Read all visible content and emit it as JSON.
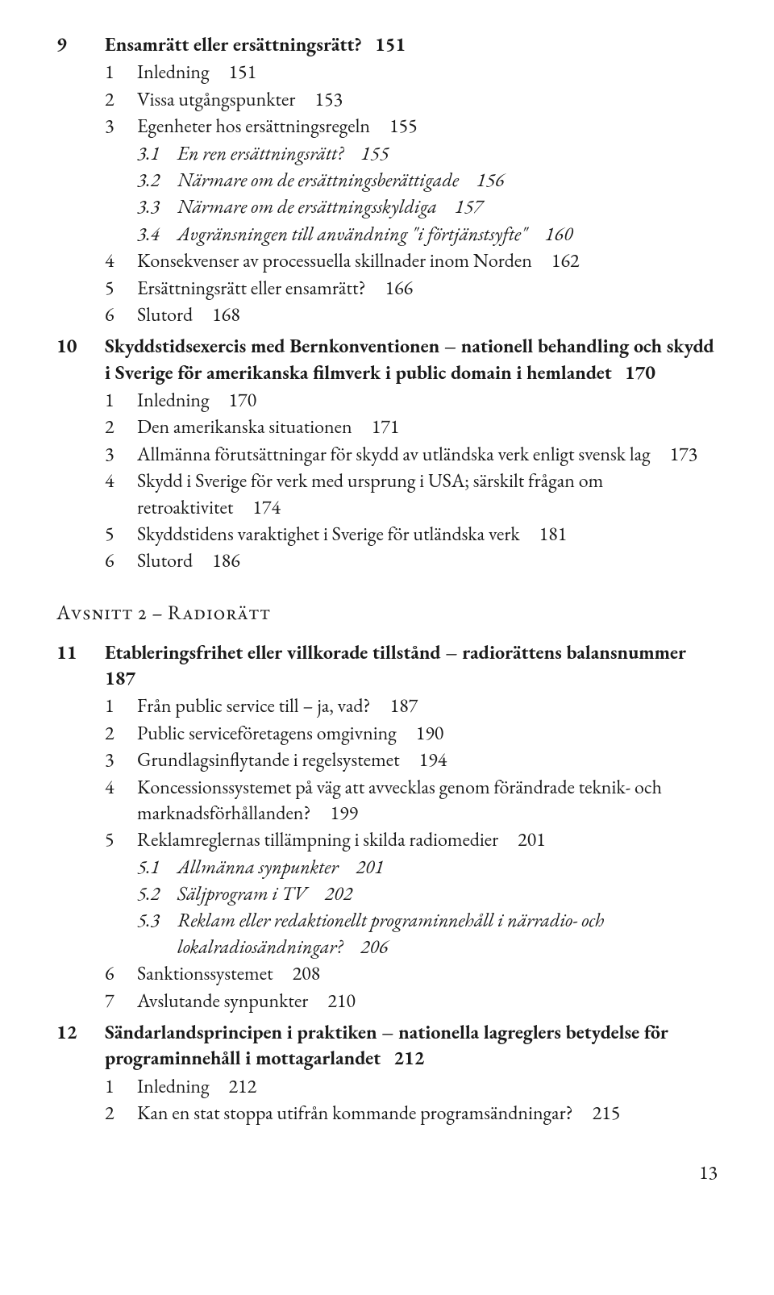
{
  "chapters": [
    {
      "num": "9",
      "title": "Ensamrätt eller ersättningsrätt?",
      "page": "151",
      "subs": [
        {
          "num": "1",
          "text": "Inledning",
          "page": "151"
        },
        {
          "num": "2",
          "text": "Vissa utgångspunkter",
          "page": "153"
        },
        {
          "num": "3",
          "text": "Egenheter hos ersättningsregeln",
          "page": "155",
          "subsubs": [
            {
              "num": "3.1",
              "text": "En ren ersättningsrätt?",
              "page": "155",
              "italic": true
            },
            {
              "num": "3.2",
              "text": "Närmare om de ersättningsberättigade",
              "page": "156",
              "italic": true
            },
            {
              "num": "3.3",
              "text": "Närmare om de ersättningsskyldiga",
              "page": "157",
              "italic": true
            },
            {
              "num": "3.4",
              "text": "Avgränsningen till användning \"i förtjänstsyfte\"",
              "page": "160",
              "italic": true
            }
          ]
        },
        {
          "num": "4",
          "text": "Konsekvenser av processuella skillnader inom Norden",
          "page": "162"
        },
        {
          "num": "5",
          "text": "Ersättningsrätt eller ensamrätt?",
          "page": "166"
        },
        {
          "num": "6",
          "text": "Slutord",
          "page": "168"
        }
      ]
    },
    {
      "num": "10",
      "title": "Skyddstidsexercis med Bernkonventionen – nationell behandling och skydd i Sverige för amerikanska filmverk i public domain i hemlandet",
      "page": "170",
      "subs": [
        {
          "num": "1",
          "text": "Inledning",
          "page": "170"
        },
        {
          "num": "2",
          "text": "Den amerikanska situationen",
          "page": "171"
        },
        {
          "num": "3",
          "text": "Allmänna förutsättningar för skydd av utländska verk enligt svensk lag",
          "page": "173"
        },
        {
          "num": "4",
          "text": "Skydd i Sverige för verk med ursprung i USA; särskilt frågan om retroaktivitet",
          "page": "174"
        },
        {
          "num": "5",
          "text": "Skyddstidens varaktighet i Sverige för utländska verk",
          "page": "181"
        },
        {
          "num": "6",
          "text": "Slutord",
          "page": "186"
        }
      ]
    }
  ],
  "sectionHead": "Avsnitt 2 – Radiorätt",
  "chapters2": [
    {
      "num": "11",
      "title": "Etableringsfrihet eller villkorade tillstånd – radiorättens balansnummer",
      "page": "187",
      "subs": [
        {
          "num": "1",
          "text": "Från public service till – ja, vad?",
          "page": "187"
        },
        {
          "num": "2",
          "text": "Public serviceföretagens omgivning",
          "page": "190"
        },
        {
          "num": "3",
          "text": "Grundlagsinflytande i regelsystemet",
          "page": "194"
        },
        {
          "num": "4",
          "text": "Koncessionssystemet på väg att avvecklas genom förändrade teknik- och marknadsförhållanden?",
          "page": "199"
        },
        {
          "num": "5",
          "text": "Reklamreglernas tillämpning i skilda radiomedier",
          "page": "201",
          "subsubs": [
            {
              "num": "5.1",
              "text": "Allmänna synpunkter",
              "page": "201",
              "italic": true
            },
            {
              "num": "5.2",
              "text": "Säljprogram i TV",
              "page": "202",
              "italic": true
            },
            {
              "num": "5.3",
              "text": "Reklam eller redaktionellt programinnehåll i närradio- och lokalradiosändningar?",
              "page": "206",
              "italic": true
            }
          ]
        },
        {
          "num": "6",
          "text": "Sanktionssystemet",
          "page": "208"
        },
        {
          "num": "7",
          "text": "Avslutande synpunkter",
          "page": "210"
        }
      ]
    },
    {
      "num": "12",
      "title": "Sändarlandsprincipen i praktiken – nationella lagreglers betydelse för programinnehåll i mottagarlandet",
      "page": "212",
      "subs": [
        {
          "num": "1",
          "text": "Inledning",
          "page": "212"
        },
        {
          "num": "2",
          "text": "Kan en stat stoppa utifrån kommande programsändningar?",
          "page": "215"
        }
      ]
    }
  ],
  "pageNumber": "13"
}
